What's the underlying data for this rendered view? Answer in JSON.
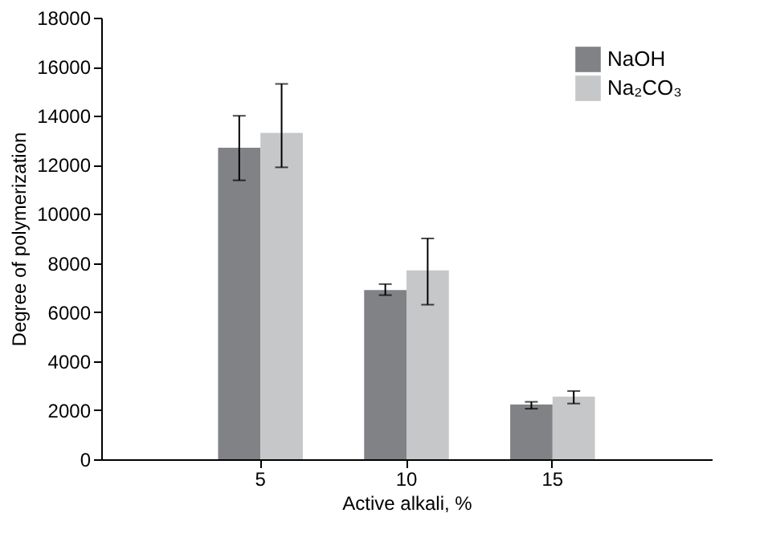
{
  "chart_data": {
    "type": "bar",
    "xlabel": "Active alkali, %",
    "ylabel": "Degree of polymerization",
    "categories": [
      "5",
      "10",
      "15"
    ],
    "series": [
      {
        "name": "NaOH",
        "color": "#808285",
        "values": [
          12700,
          6900,
          2230
        ],
        "errors": [
          [
            11370,
            14000
          ],
          [
            6690,
            7140
          ],
          [
            2060,
            2340
          ]
        ]
      },
      {
        "name": "Na₂CO₃",
        "color": "#c6c7c9",
        "values": [
          13300,
          7700,
          2550
        ],
        "errors": [
          [
            11900,
            15300
          ],
          [
            6300,
            9000
          ],
          [
            2270,
            2780
          ]
        ]
      }
    ],
    "ylim": [
      0,
      18000
    ],
    "yticks": [
      0,
      2000,
      4000,
      6000,
      8000,
      10000,
      12000,
      14000,
      16000,
      18000
    ],
    "grid": false,
    "legend": "top right"
  }
}
